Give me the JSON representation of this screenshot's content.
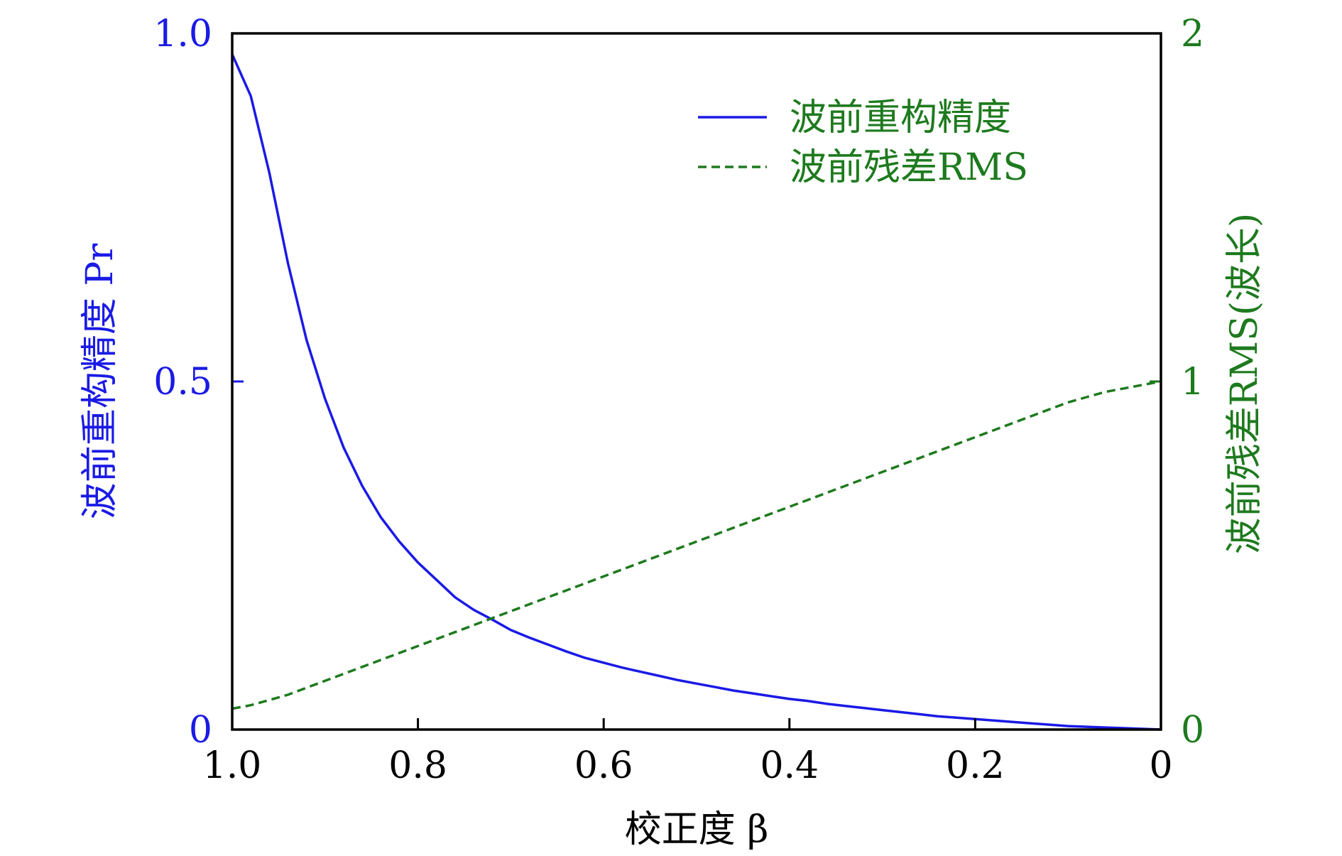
{
  "chart_data": {
    "type": "line",
    "xlabel": "校正度 β",
    "ylabel_left": "波前重构精度 Pr",
    "ylabel_right": "波前残差RMS(波长)",
    "xlim": [
      1.0,
      0
    ],
    "ylim_left": [
      0,
      1.0
    ],
    "ylim_right": [
      0,
      2
    ],
    "x_ticks": [
      {
        "value": 1.0,
        "label": "1.0"
      },
      {
        "value": 0.8,
        "label": "0.8"
      },
      {
        "value": 0.6,
        "label": "0.6"
      },
      {
        "value": 0.4,
        "label": "0.4"
      },
      {
        "value": 0.2,
        "label": "0.2"
      },
      {
        "value": 0,
        "label": "0"
      }
    ],
    "y_ticks_left": [
      {
        "value": 0,
        "label": "0"
      },
      {
        "value": 0.5,
        "label": "0.5"
      },
      {
        "value": 1.0,
        "label": "1.0"
      }
    ],
    "y_ticks_right": [
      {
        "value": 0,
        "label": "0"
      },
      {
        "value": 1,
        "label": "1"
      },
      {
        "value": 2,
        "label": "2"
      }
    ],
    "grid": false,
    "legend_position": "top-right",
    "colors": {
      "left_axis": "#1a1ae6",
      "right_axis": "#1e7a1e",
      "frame": "#000000"
    },
    "series": [
      {
        "name": "波前重构精度",
        "axis": "left",
        "style": "solid",
        "color": "#1a1ae6",
        "x": [
          1.0,
          0.98,
          0.96,
          0.94,
          0.92,
          0.9,
          0.88,
          0.86,
          0.84,
          0.82,
          0.8,
          0.78,
          0.76,
          0.74,
          0.72,
          0.7,
          0.68,
          0.66,
          0.64,
          0.62,
          0.6,
          0.58,
          0.56,
          0.54,
          0.52,
          0.5,
          0.48,
          0.46,
          0.44,
          0.42,
          0.4,
          0.38,
          0.36,
          0.34,
          0.32,
          0.3,
          0.28,
          0.26,
          0.24,
          0.22,
          0.2,
          0.18,
          0.16,
          0.14,
          0.12,
          0.1,
          0.08,
          0.06,
          0.04,
          0.02,
          0
        ],
        "values": [
          0.97,
          0.91,
          0.8,
          0.67,
          0.56,
          0.475,
          0.405,
          0.35,
          0.305,
          0.27,
          0.24,
          0.215,
          0.19,
          0.172,
          0.158,
          0.143,
          0.132,
          0.122,
          0.112,
          0.103,
          0.096,
          0.089,
          0.083,
          0.077,
          0.071,
          0.066,
          0.061,
          0.056,
          0.052,
          0.048,
          0.044,
          0.041,
          0.037,
          0.034,
          0.031,
          0.028,
          0.025,
          0.022,
          0.019,
          0.017,
          0.015,
          0.013,
          0.011,
          0.009,
          0.007,
          0.005,
          0.004,
          0.003,
          0.002,
          0.001,
          0.0
        ]
      },
      {
        "name": "波前残差RMS",
        "axis": "right",
        "style": "dashed",
        "color": "#1e7a1e",
        "x": [
          1.0,
          0.98,
          0.96,
          0.94,
          0.92,
          0.9,
          0.88,
          0.86,
          0.84,
          0.82,
          0.8,
          0.78,
          0.76,
          0.74,
          0.72,
          0.7,
          0.68,
          0.66,
          0.64,
          0.62,
          0.6,
          0.58,
          0.56,
          0.54,
          0.52,
          0.5,
          0.48,
          0.46,
          0.44,
          0.42,
          0.4,
          0.38,
          0.36,
          0.34,
          0.32,
          0.3,
          0.28,
          0.26,
          0.24,
          0.22,
          0.2,
          0.18,
          0.16,
          0.14,
          0.12,
          0.1,
          0.08,
          0.06,
          0.04,
          0.02,
          0
        ],
        "values": [
          0.06,
          0.07,
          0.085,
          0.1,
          0.12,
          0.14,
          0.16,
          0.18,
          0.2,
          0.22,
          0.24,
          0.26,
          0.28,
          0.3,
          0.32,
          0.34,
          0.36,
          0.38,
          0.4,
          0.42,
          0.44,
          0.46,
          0.48,
          0.5,
          0.52,
          0.54,
          0.56,
          0.58,
          0.6,
          0.62,
          0.64,
          0.66,
          0.68,
          0.7,
          0.72,
          0.74,
          0.76,
          0.78,
          0.8,
          0.82,
          0.84,
          0.86,
          0.88,
          0.9,
          0.92,
          0.94,
          0.955,
          0.97,
          0.98,
          0.99,
          1.0
        ]
      }
    ]
  }
}
